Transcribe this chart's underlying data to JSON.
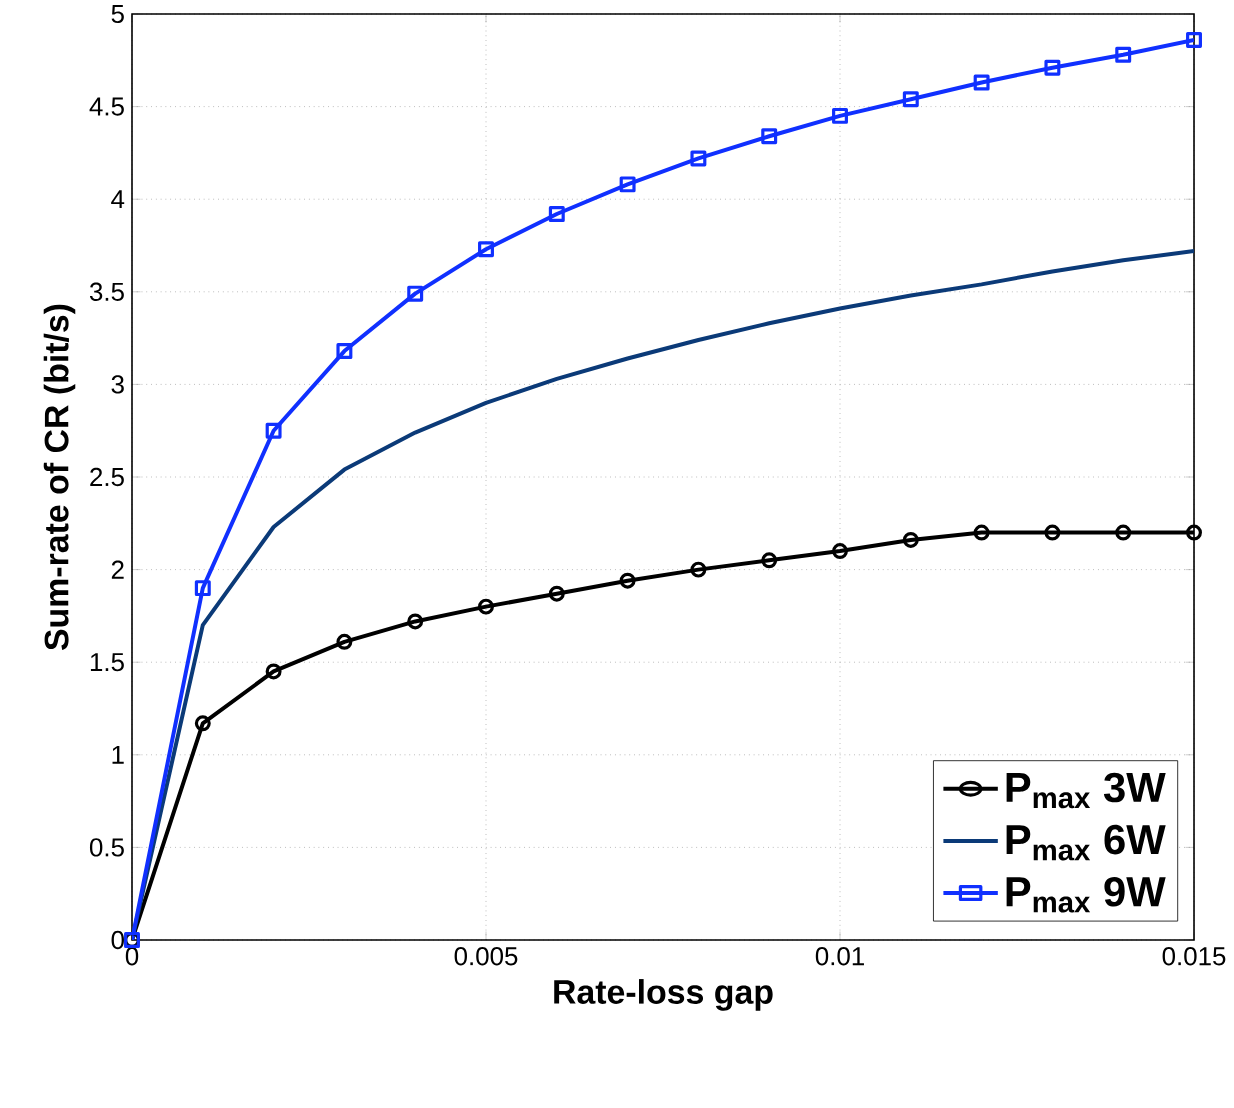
{
  "chart_data": {
    "type": "line",
    "xlabel": "Rate-loss gap",
    "ylabel": "Sum-rate of CR (bit/s)",
    "x": [
      0,
      0.001,
      0.002,
      0.003,
      0.004,
      0.005,
      0.006,
      0.007,
      0.008,
      0.009,
      0.01,
      0.011,
      0.012,
      0.013,
      0.014,
      0.015
    ],
    "series": [
      {
        "name": "P$_{max}$ 3W",
        "color": "#000000",
        "marker": "circle",
        "values": [
          0,
          1.17,
          1.45,
          1.61,
          1.72,
          1.8,
          1.87,
          1.94,
          2.0,
          2.05,
          2.1,
          2.16,
          2.2,
          2.2,
          2.2,
          2.2
        ]
      },
      {
        "name": "P$_{max}$ 6W",
        "color": "#0b3a78",
        "marker": "none",
        "values": [
          0,
          1.7,
          2.23,
          2.54,
          2.74,
          2.9,
          3.03,
          3.14,
          3.24,
          3.33,
          3.41,
          3.48,
          3.54,
          3.61,
          3.67,
          3.72
        ]
      },
      {
        "name": "P$_{max}$ 9W",
        "color": "#1030ff",
        "marker": "square",
        "values": [
          0,
          1.9,
          2.75,
          3.18,
          3.49,
          3.73,
          3.92,
          4.08,
          4.22,
          4.34,
          4.45,
          4.54,
          4.63,
          4.71,
          4.78,
          4.86
        ]
      }
    ],
    "xlim": [
      0,
      0.015
    ],
    "xticks": [
      0,
      0.005,
      0.01,
      0.015
    ],
    "ylim": [
      0,
      5
    ],
    "yticks": [
      0,
      0.5,
      1,
      1.5,
      2,
      2.5,
      3,
      3.5,
      4,
      4.5,
      5
    ],
    "grid": true,
    "legend": "bottom right",
    "line_style": "solid"
  }
}
